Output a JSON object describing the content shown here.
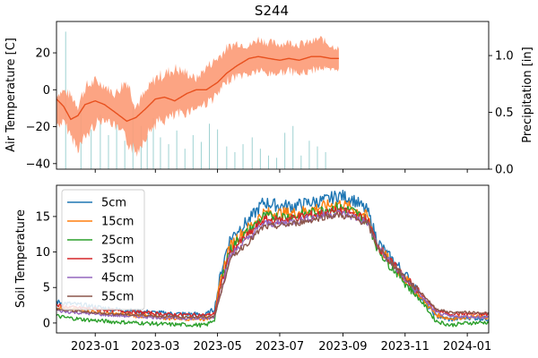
{
  "chart_data": [
    {
      "type": "line",
      "title": "S244",
      "ylabel": "Air Temperature [C]",
      "ylabel_right": "Precipitation [in]",
      "x_range": [
        "2022-11-24",
        "2024-01-22"
      ],
      "ylim": [
        -43,
        37
      ],
      "ylim_right": [
        0,
        1.3
      ],
      "yticks": [
        -40,
        -20,
        0,
        20
      ],
      "yticks_right": [
        0.0,
        0.5,
        1.0
      ],
      "ytick_labels": [
        "−40",
        "−20",
        "0",
        "20"
      ],
      "ytick_labels_right": [
        "0.0",
        "0.5",
        "1.0"
      ],
      "grid": false,
      "series": [
        {
          "kind": "daily-range",
          "color": "#fc9a75",
          "dates": [
            "2022-11-24",
            "2022-12-01",
            "2022-12-08",
            "2022-12-15",
            "2022-12-22",
            "2023-01-01",
            "2023-01-10",
            "2023-01-20",
            "2023-02-01",
            "2023-02-10",
            "2023-02-20",
            "2023-03-01",
            "2023-03-10",
            "2023-03-20",
            "2023-04-01",
            "2023-04-10",
            "2023-04-20",
            "2023-05-01",
            "2023-05-10",
            "2023-05-20",
            "2023-06-01",
            "2023-06-10",
            "2023-06-20",
            "2023-07-01",
            "2023-07-10",
            "2023-07-20",
            "2023-08-01",
            "2023-08-10",
            "2023-08-20",
            "2023-08-28"
          ],
          "low": [
            -22,
            -20,
            -28,
            -35,
            -30,
            -22,
            -18,
            -22,
            -32,
            -38,
            -28,
            -22,
            -20,
            -18,
            -15,
            -12,
            -10,
            -6,
            2,
            5,
            6,
            8,
            6,
            7,
            8,
            6,
            8,
            10,
            8,
            10
          ],
          "high": [
            0,
            2,
            0,
            -5,
            5,
            8,
            5,
            0,
            10,
            -5,
            2,
            10,
            12,
            15,
            12,
            8,
            15,
            20,
            25,
            28,
            26,
            30,
            28,
            27,
            28,
            27,
            28,
            30,
            26,
            24
          ]
        },
        {
          "kind": "smoothed-line",
          "color": "#e8501e",
          "dates": [
            "2022-11-24",
            "2022-12-01",
            "2022-12-08",
            "2022-12-15",
            "2022-12-22",
            "2023-01-01",
            "2023-01-10",
            "2023-01-20",
            "2023-02-01",
            "2023-02-10",
            "2023-02-20",
            "2023-03-01",
            "2023-03-10",
            "2023-03-20",
            "2023-04-01",
            "2023-04-10",
            "2023-04-20",
            "2023-05-01",
            "2023-05-10",
            "2023-05-20",
            "2023-06-01",
            "2023-06-10",
            "2023-06-20",
            "2023-07-01",
            "2023-07-10",
            "2023-07-20",
            "2023-08-01",
            "2023-08-10",
            "2023-08-20",
            "2023-08-28"
          ],
          "values": [
            -5,
            -9,
            -16,
            -14,
            -8,
            -6,
            -8,
            -12,
            -17,
            -15,
            -10,
            -5,
            -4,
            -6,
            -2,
            0,
            0,
            4,
            9,
            13,
            17,
            18,
            17,
            16,
            17,
            16,
            18,
            18,
            17,
            17
          ]
        },
        {
          "kind": "bars",
          "axis": "right",
          "color": "#9fd2d2",
          "dates": [
            "2022-12-03",
            "2022-12-18",
            "2022-12-28",
            "2023-01-06",
            "2023-01-14",
            "2023-01-22",
            "2023-01-30",
            "2023-02-07",
            "2023-02-15",
            "2023-02-21",
            "2023-02-27",
            "2023-03-06",
            "2023-03-14",
            "2023-03-22",
            "2023-03-30",
            "2023-04-07",
            "2023-04-15",
            "2023-04-23",
            "2023-05-01",
            "2023-05-10",
            "2023-05-18",
            "2023-05-26",
            "2023-06-04",
            "2023-06-12",
            "2023-06-20",
            "2023-06-28",
            "2023-07-06",
            "2023-07-14",
            "2023-07-22",
            "2023-07-30",
            "2023-08-07",
            "2023-08-15"
          ],
          "values": [
            1.21,
            0.6,
            0.35,
            0.48,
            0.3,
            0.42,
            0.25,
            0.55,
            0.38,
            0.3,
            0.45,
            0.28,
            0.22,
            0.34,
            0.18,
            0.3,
            0.24,
            0.4,
            0.35,
            0.2,
            0.15,
            0.22,
            0.28,
            0.18,
            0.12,
            0.1,
            0.32,
            0.38,
            0.12,
            0.25,
            0.2,
            0.15
          ]
        }
      ]
    },
    {
      "type": "line",
      "ylabel": "Soil Temperature",
      "x_range": [
        "2022-11-24",
        "2024-01-22"
      ],
      "ylim": [
        -1.4,
        19.4
      ],
      "yticks": [
        0,
        5,
        10,
        15
      ],
      "ytick_labels": [
        "0",
        "5",
        "10",
        "15"
      ],
      "xtick_labels": [
        "2023-01",
        "2023-03",
        "2023-05",
        "2023-07",
        "2023-09",
        "2023-11",
        "2024-01"
      ],
      "xticks": [
        "2023-01-01",
        "2023-03-01",
        "2023-05-01",
        "2023-07-01",
        "2023-09-01",
        "2023-11-01",
        "2024-01-01"
      ],
      "legend": "upper-left",
      "grid": false,
      "series": [
        {
          "name": "5cm",
          "color": "#1f77b4",
          "dates": [
            "2022-11-24",
            "2022-12-01",
            "2022-12-20",
            "2023-01-15",
            "2023-02-15",
            "2023-03-15",
            "2023-04-20",
            "2023-04-28",
            "2023-05-05",
            "2023-05-12",
            "2023-05-20",
            "2023-06-01",
            "2023-06-15",
            "2023-07-01",
            "2023-07-15",
            "2023-08-01",
            "2023-08-15",
            "2023-08-28",
            "2023-09-10",
            "2023-09-25",
            "2023-10-05",
            "2023-10-15",
            "2023-10-25",
            "2023-11-05",
            "2023-11-20",
            "2023-12-01",
            "2023-12-15",
            "2024-01-01",
            "2024-01-22"
          ],
          "values": [
            3,
            2.8,
            2.5,
            2,
            1.6,
            1.3,
            1.2,
            2,
            7.5,
            11.5,
            13,
            14.5,
            17,
            16.5,
            16.5,
            17,
            17.3,
            18,
            17.5,
            15.8,
            11.5,
            9.5,
            8,
            6,
            3,
            1,
            0.5,
            0.8,
            0.6
          ]
        },
        {
          "name": "15cm",
          "color": "#ff7f0e",
          "dates": [
            "2022-11-24",
            "2022-12-01",
            "2022-12-20",
            "2023-01-15",
            "2023-02-15",
            "2023-03-15",
            "2023-04-20",
            "2023-04-28",
            "2023-05-05",
            "2023-05-12",
            "2023-05-20",
            "2023-06-01",
            "2023-06-15",
            "2023-07-01",
            "2023-07-15",
            "2023-08-01",
            "2023-08-15",
            "2023-08-28",
            "2023-09-10",
            "2023-09-25",
            "2023-10-05",
            "2023-10-15",
            "2023-10-25",
            "2023-11-05",
            "2023-11-20",
            "2023-12-01",
            "2023-12-15",
            "2024-01-01",
            "2024-01-22"
          ],
          "values": [
            2.2,
            2,
            1.8,
            1.3,
            1,
            0.7,
            0.6,
            1.2,
            6.5,
            10.5,
            12,
            13.5,
            15.5,
            15.5,
            15.5,
            16,
            16.5,
            16.8,
            16.2,
            15,
            11,
            9,
            7.5,
            5.5,
            3,
            1.2,
            0.6,
            0.9,
            0.8
          ]
        },
        {
          "name": "25cm",
          "color": "#2ca02c",
          "dates": [
            "2022-11-24",
            "2022-12-01",
            "2022-12-20",
            "2023-01-15",
            "2023-02-15",
            "2023-03-15",
            "2023-04-20",
            "2023-04-28",
            "2023-05-05",
            "2023-05-12",
            "2023-05-20",
            "2023-06-01",
            "2023-06-15",
            "2023-07-01",
            "2023-07-15",
            "2023-08-01",
            "2023-08-15",
            "2023-08-28",
            "2023-09-10",
            "2023-09-25",
            "2023-10-05",
            "2023-10-15",
            "2023-10-25",
            "2023-11-05",
            "2023-11-20",
            "2023-12-01",
            "2023-12-15",
            "2024-01-01",
            "2024-01-22"
          ],
          "values": [
            1,
            0.8,
            0.5,
            0.2,
            0,
            -0.2,
            -0.3,
            0.5,
            5.8,
            10,
            11.5,
            13,
            15,
            15,
            15,
            15.5,
            16,
            16.3,
            15.8,
            14.5,
            10.5,
            8.5,
            7,
            5,
            2.5,
            0.3,
            -0.3,
            0,
            0.1
          ]
        },
        {
          "name": "35cm",
          "color": "#d62728",
          "dates": [
            "2022-11-24",
            "2022-12-01",
            "2022-12-20",
            "2023-01-15",
            "2023-02-15",
            "2023-03-15",
            "2023-04-20",
            "2023-04-28",
            "2023-05-05",
            "2023-05-12",
            "2023-05-20",
            "2023-06-01",
            "2023-06-15",
            "2023-07-01",
            "2023-07-15",
            "2023-08-01",
            "2023-08-15",
            "2023-08-28",
            "2023-09-10",
            "2023-09-25",
            "2023-10-05",
            "2023-10-15",
            "2023-10-25",
            "2023-11-05",
            "2023-11-20",
            "2023-12-01",
            "2023-12-15",
            "2024-01-01",
            "2024-01-22"
          ],
          "values": [
            2.5,
            2.3,
            2.1,
            1.8,
            1.5,
            1.2,
            1.1,
            1.3,
            5.5,
            9.5,
            11,
            12.5,
            14.5,
            14.5,
            14.8,
            15.2,
            15.5,
            15.8,
            15.4,
            14.5,
            11,
            9,
            7.5,
            5.8,
            3.5,
            1.8,
            1.3,
            1.3,
            1.2
          ]
        },
        {
          "name": "45cm",
          "color": "#9467bd",
          "dates": [
            "2022-11-24",
            "2022-12-01",
            "2022-12-20",
            "2023-01-15",
            "2023-02-15",
            "2023-03-15",
            "2023-04-20",
            "2023-04-28",
            "2023-05-05",
            "2023-05-12",
            "2023-05-20",
            "2023-06-01",
            "2023-06-15",
            "2023-07-01",
            "2023-07-15",
            "2023-08-01",
            "2023-08-15",
            "2023-08-28",
            "2023-09-10",
            "2023-09-25",
            "2023-10-05",
            "2023-10-15",
            "2023-10-25",
            "2023-11-05",
            "2023-11-20",
            "2023-12-01",
            "2023-12-15",
            "2024-01-01",
            "2024-01-22"
          ],
          "values": [
            1.8,
            1.6,
            1.4,
            1.1,
            0.9,
            0.7,
            0.6,
            0.9,
            5,
            9,
            10.5,
            12,
            14,
            14,
            14.3,
            14.8,
            15.2,
            15.5,
            15,
            14.2,
            10.8,
            9,
            7.3,
            5.6,
            3.3,
            1.5,
            0.9,
            0.9,
            0.8
          ]
        },
        {
          "name": "55cm",
          "color": "#8c564b",
          "dates": [
            "2022-11-24",
            "2022-12-01",
            "2022-12-20",
            "2023-01-15",
            "2023-02-15",
            "2023-03-15",
            "2023-04-20",
            "2023-04-28",
            "2023-05-05",
            "2023-05-12",
            "2023-05-20",
            "2023-06-01",
            "2023-06-15",
            "2023-07-01",
            "2023-07-15",
            "2023-08-01",
            "2023-08-15",
            "2023-08-28",
            "2023-09-10",
            "2023-09-25",
            "2023-10-05",
            "2023-10-15",
            "2023-10-25",
            "2023-11-05",
            "2023-11-20",
            "2023-12-01",
            "2023-12-15",
            "2024-01-01",
            "2024-01-22"
          ],
          "values": [
            2,
            1.8,
            1.6,
            1.3,
            1.1,
            0.9,
            0.8,
            1,
            4.5,
            8.5,
            10,
            11.5,
            13.5,
            13.7,
            14,
            14.5,
            15,
            15.2,
            14.8,
            14,
            10.8,
            9,
            7.5,
            5.8,
            3.8,
            2,
            1.5,
            1.5,
            1.4
          ]
        }
      ]
    }
  ]
}
